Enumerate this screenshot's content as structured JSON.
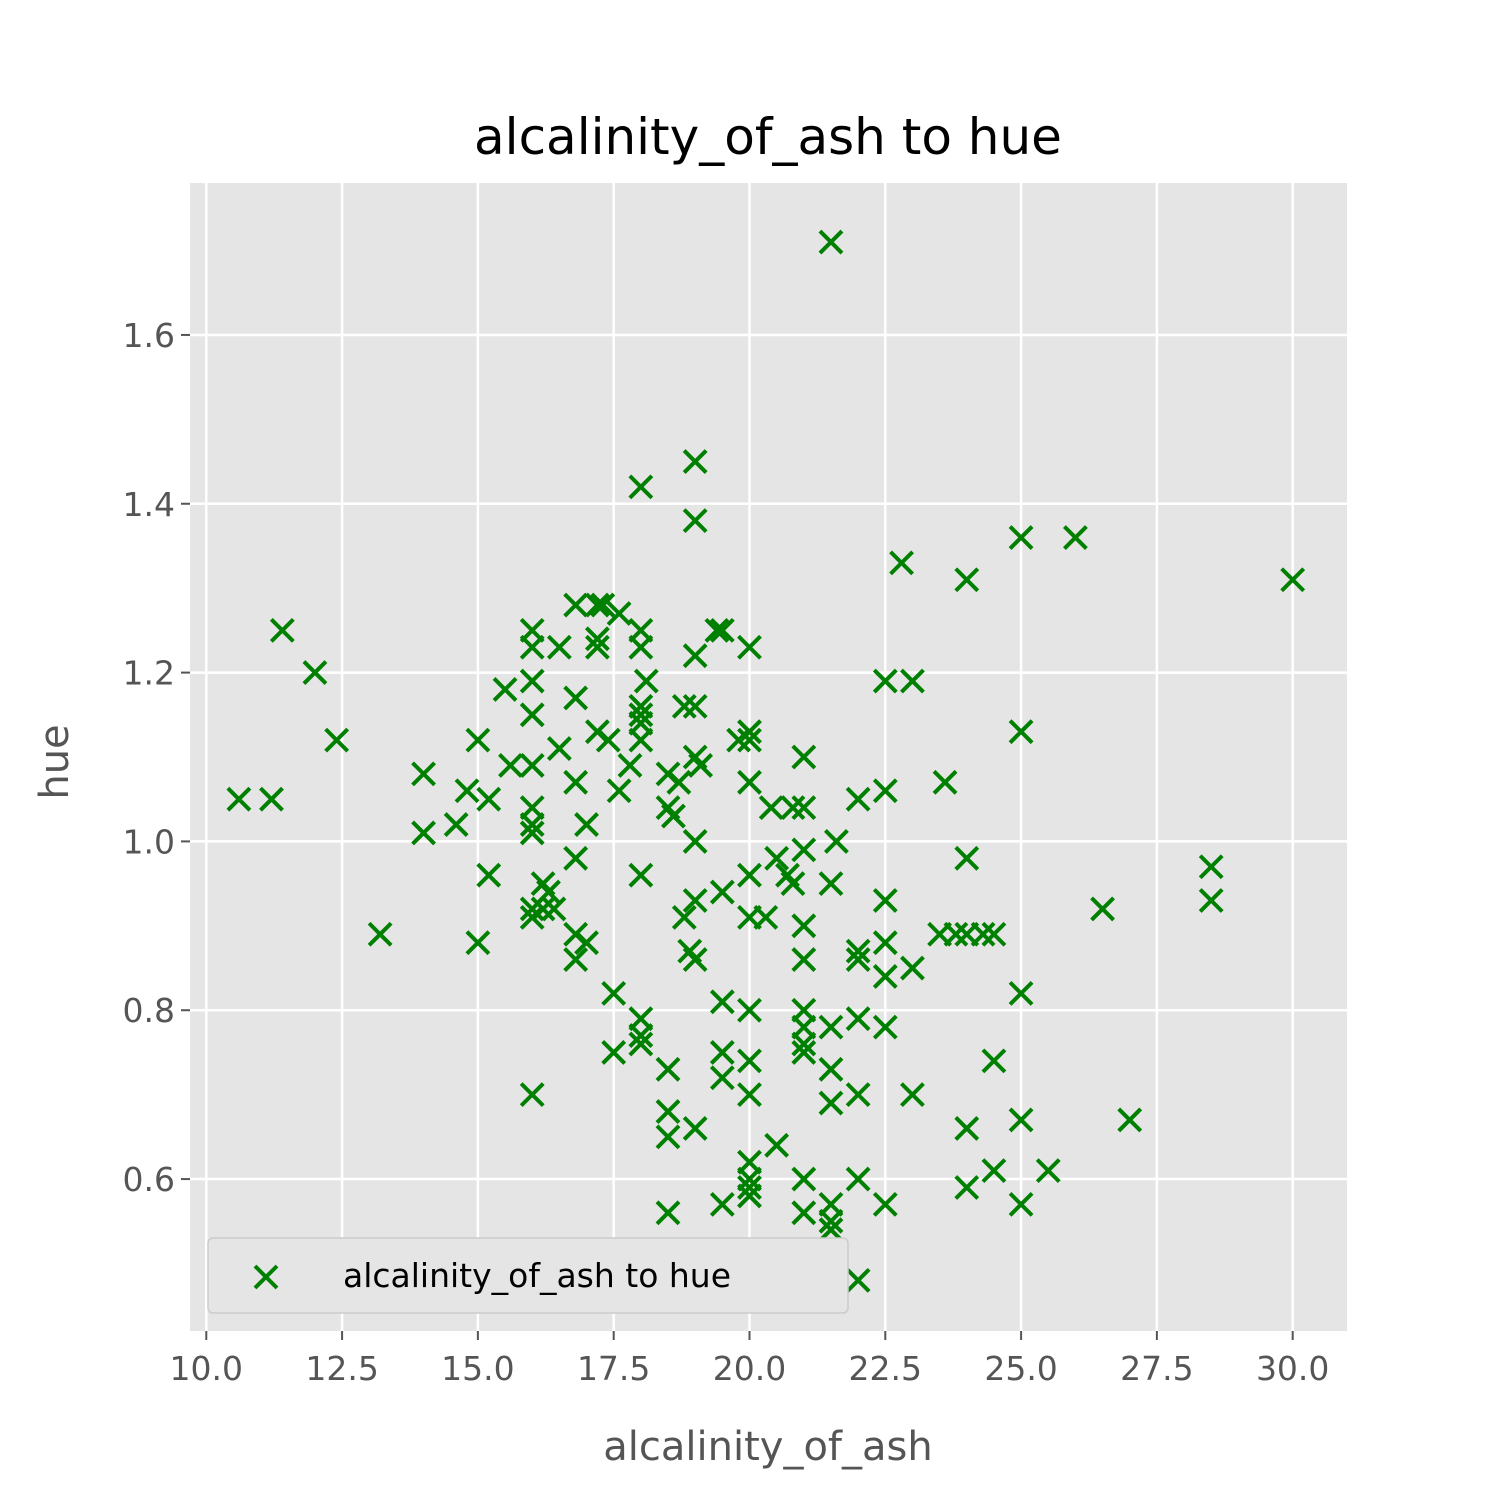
{
  "chart_data": {
    "type": "scatter",
    "title": "alcalinity_of_ash to hue",
    "xlabel": "alcalinity_of_ash",
    "ylabel": "hue",
    "xlim": [
      9.7,
      31.0
    ],
    "ylim": [
      0.42,
      1.78
    ],
    "x_ticks": [
      "10.0",
      "12.5",
      "15.0",
      "17.5",
      "20.0",
      "22.5",
      "25.0",
      "27.5",
      "30.0"
    ],
    "y_ticks": [
      "0.6",
      "0.8",
      "1.0",
      "1.2",
      "1.4",
      "1.6"
    ],
    "grid": true,
    "legend_position": "lower-left",
    "marker": "x",
    "colors": {
      "points": "#008000",
      "plot_bg": "#e5e5e5",
      "grid": "#ffffff"
    },
    "series": [
      {
        "name": "alcalinity_of_ash to hue",
        "points": [
          [
            10.6,
            1.05
          ],
          [
            11.2,
            1.05
          ],
          [
            11.4,
            1.25
          ],
          [
            12.0,
            1.2
          ],
          [
            12.4,
            1.12
          ],
          [
            13.2,
            0.89
          ],
          [
            14.0,
            1.08
          ],
          [
            14.0,
            1.01
          ],
          [
            14.6,
            1.02
          ],
          [
            14.8,
            1.06
          ],
          [
            15.0,
            1.12
          ],
          [
            15.0,
            0.88
          ],
          [
            15.2,
            1.05
          ],
          [
            15.2,
            0.96
          ],
          [
            15.5,
            1.18
          ],
          [
            15.6,
            1.09
          ],
          [
            16.0,
            1.25
          ],
          [
            16.0,
            1.23
          ],
          [
            16.0,
            1.19
          ],
          [
            16.0,
            1.15
          ],
          [
            16.0,
            1.09
          ],
          [
            16.0,
            1.04
          ],
          [
            16.0,
            1.02
          ],
          [
            16.0,
            1.01
          ],
          [
            16.0,
            0.92
          ],
          [
            16.0,
            0.91
          ],
          [
            16.0,
            0.7
          ],
          [
            16.2,
            0.95
          ],
          [
            16.2,
            0.92
          ],
          [
            16.3,
            0.94
          ],
          [
            16.4,
            0.92
          ],
          [
            16.5,
            1.23
          ],
          [
            16.5,
            1.11
          ],
          [
            16.8,
            1.28
          ],
          [
            16.8,
            1.17
          ],
          [
            16.8,
            1.07
          ],
          [
            16.8,
            0.98
          ],
          [
            16.8,
            0.89
          ],
          [
            16.8,
            0.86
          ],
          [
            17.0,
            1.02
          ],
          [
            17.0,
            0.88
          ],
          [
            17.2,
            1.28
          ],
          [
            17.2,
            1.24
          ],
          [
            17.2,
            1.23
          ],
          [
            17.2,
            1.13
          ],
          [
            17.3,
            1.28
          ],
          [
            17.4,
            1.12
          ],
          [
            17.5,
            0.82
          ],
          [
            17.5,
            0.75
          ],
          [
            17.6,
            1.27
          ],
          [
            17.6,
            1.06
          ],
          [
            17.8,
            1.09
          ],
          [
            18.0,
            1.42
          ],
          [
            18.0,
            1.25
          ],
          [
            18.0,
            1.23
          ],
          [
            18.0,
            1.16
          ],
          [
            18.0,
            1.15
          ],
          [
            18.0,
            1.14
          ],
          [
            18.0,
            1.12
          ],
          [
            18.0,
            0.96
          ],
          [
            18.0,
            0.79
          ],
          [
            18.0,
            0.77
          ],
          [
            18.0,
            0.76
          ],
          [
            18.1,
            1.19
          ],
          [
            18.5,
            1.08
          ],
          [
            18.5,
            1.04
          ],
          [
            18.5,
            0.73
          ],
          [
            18.5,
            0.68
          ],
          [
            18.5,
            0.65
          ],
          [
            18.5,
            0.56
          ],
          [
            18.6,
            1.03
          ],
          [
            18.7,
            1.07
          ],
          [
            18.8,
            1.16
          ],
          [
            18.8,
            0.91
          ],
          [
            18.9,
            0.87
          ],
          [
            19.0,
            1.45
          ],
          [
            19.0,
            1.38
          ],
          [
            19.0,
            1.22
          ],
          [
            19.0,
            1.16
          ],
          [
            19.0,
            1.1
          ],
          [
            19.0,
            1.0
          ],
          [
            19.0,
            0.93
          ],
          [
            19.0,
            0.86
          ],
          [
            19.0,
            0.66
          ],
          [
            19.1,
            1.09
          ],
          [
            19.4,
            1.25
          ],
          [
            19.5,
            1.25
          ],
          [
            19.5,
            0.94
          ],
          [
            19.5,
            0.81
          ],
          [
            19.5,
            0.75
          ],
          [
            19.5,
            0.72
          ],
          [
            19.5,
            0.57
          ],
          [
            19.8,
            1.12
          ],
          [
            20.0,
            1.23
          ],
          [
            20.0,
            1.13
          ],
          [
            20.0,
            1.12
          ],
          [
            20.0,
            1.07
          ],
          [
            20.0,
            0.96
          ],
          [
            20.0,
            0.91
          ],
          [
            20.0,
            0.8
          ],
          [
            20.0,
            0.74
          ],
          [
            20.0,
            0.7
          ],
          [
            20.0,
            0.62
          ],
          [
            20.0,
            0.6
          ],
          [
            20.0,
            0.59
          ],
          [
            20.0,
            0.58
          ],
          [
            20.3,
            0.91
          ],
          [
            20.4,
            1.04
          ],
          [
            20.5,
            0.98
          ],
          [
            20.5,
            0.64
          ],
          [
            20.7,
            0.96
          ],
          [
            20.8,
            1.04
          ],
          [
            20.8,
            0.95
          ],
          [
            21.0,
            1.1
          ],
          [
            21.0,
            1.04
          ],
          [
            21.0,
            0.99
          ],
          [
            21.0,
            0.9
          ],
          [
            21.0,
            0.86
          ],
          [
            21.0,
            0.8
          ],
          [
            21.0,
            0.78
          ],
          [
            21.0,
            0.76
          ],
          [
            21.0,
            0.75
          ],
          [
            21.0,
            0.6
          ],
          [
            21.0,
            0.56
          ],
          [
            21.5,
            1.71
          ],
          [
            21.5,
            0.95
          ],
          [
            21.5,
            0.78
          ],
          [
            21.5,
            0.73
          ],
          [
            21.5,
            0.69
          ],
          [
            21.5,
            0.57
          ],
          [
            21.5,
            0.55
          ],
          [
            21.5,
            0.54
          ],
          [
            21.6,
            1.0
          ],
          [
            22.0,
            1.05
          ],
          [
            22.0,
            0.87
          ],
          [
            22.0,
            0.86
          ],
          [
            22.0,
            0.79
          ],
          [
            22.0,
            0.7
          ],
          [
            22.0,
            0.6
          ],
          [
            22.0,
            0.48
          ],
          [
            22.5,
            1.19
          ],
          [
            22.5,
            1.06
          ],
          [
            22.5,
            0.93
          ],
          [
            22.5,
            0.88
          ],
          [
            22.5,
            0.84
          ],
          [
            22.5,
            0.78
          ],
          [
            22.5,
            0.57
          ],
          [
            22.8,
            1.33
          ],
          [
            23.0,
            1.19
          ],
          [
            23.0,
            0.85
          ],
          [
            23.0,
            0.7
          ],
          [
            23.5,
            0.89
          ],
          [
            23.6,
            1.07
          ],
          [
            23.8,
            0.89
          ],
          [
            24.0,
            1.31
          ],
          [
            24.0,
            0.98
          ],
          [
            24.0,
            0.89
          ],
          [
            24.0,
            0.66
          ],
          [
            24.0,
            0.59
          ],
          [
            24.3,
            0.89
          ],
          [
            24.5,
            0.89
          ],
          [
            24.5,
            0.74
          ],
          [
            24.5,
            0.61
          ],
          [
            25.0,
            1.36
          ],
          [
            25.0,
            1.13
          ],
          [
            25.0,
            0.82
          ],
          [
            25.0,
            0.67
          ],
          [
            25.0,
            0.57
          ],
          [
            25.5,
            0.61
          ],
          [
            26.0,
            1.36
          ],
          [
            26.5,
            0.92
          ],
          [
            27.0,
            0.67
          ],
          [
            28.5,
            0.97
          ],
          [
            28.5,
            0.93
          ],
          [
            30.0,
            1.31
          ]
        ]
      }
    ]
  }
}
